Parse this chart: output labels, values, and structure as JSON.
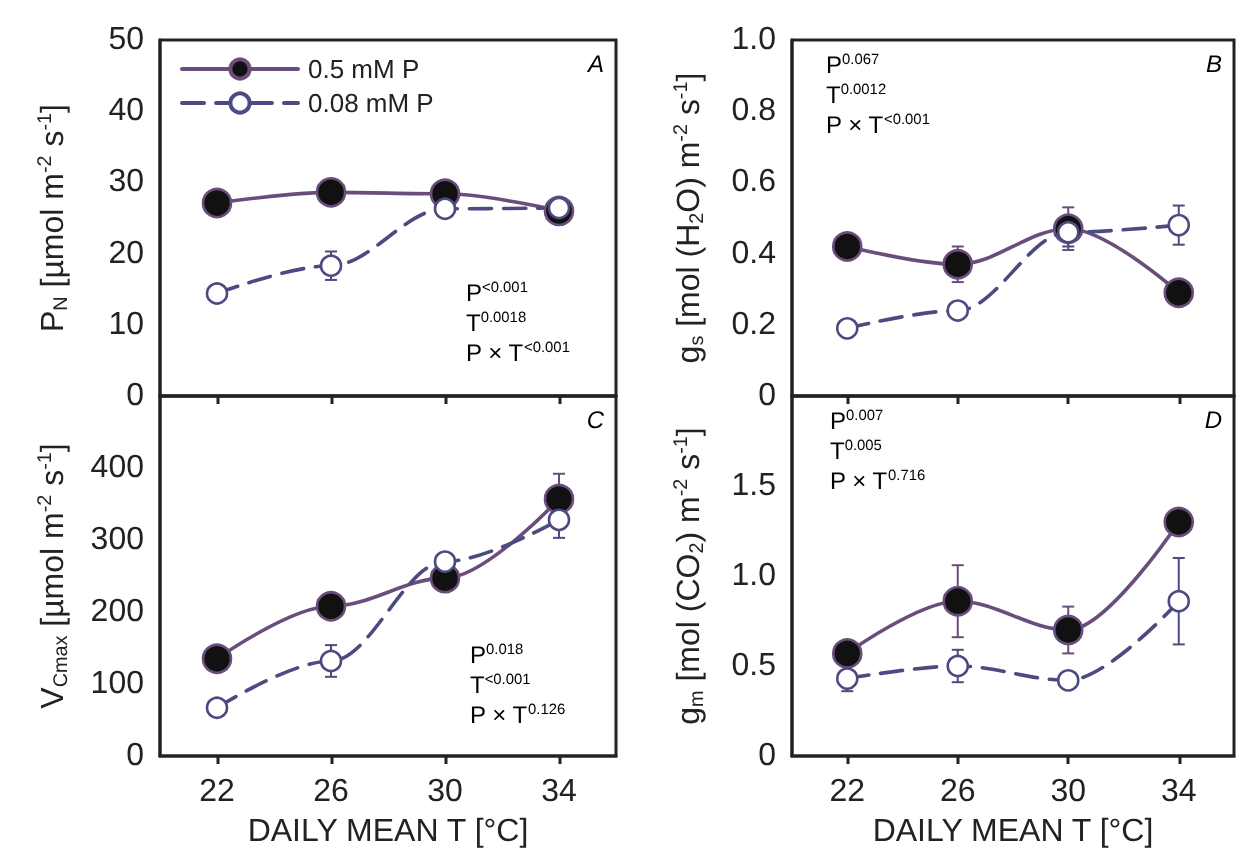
{
  "chart_data": [
    {
      "type": "line",
      "ylabel": "P$_{N}$ [µmol m$^{-2}$ s$^{-1}$]",
      "x": [
        22,
        26,
        30,
        34
      ],
      "xlim": [
        20,
        36
      ],
      "xticks": [
        22,
        26,
        30,
        34
      ],
      "ylim": [
        0,
        50
      ],
      "yticks": [
        0,
        10,
        20,
        30,
        40,
        50
      ],
      "tick_labels": "y",
      "grid": false,
      "legend": "top left",
      "marker": "circle",
      "annotations": [
        "A",
        "P$^{<0.001}$",
        "T$^{0.0018}$",
        "P × T$^{<0.001}$"
      ],
      "series": [
        {
          "name": "0.5 mM P",
          "color": "#6a4d7c",
          "line_style": "solid",
          "values": [
            27.1,
            28.6,
            28.4,
            26.0
          ],
          "errors": [
            1,
            0.5,
            1,
            1
          ]
        },
        {
          "name": "0.08 mM P",
          "color": "#4b4b82",
          "line_style": "dashed",
          "values": [
            14.4,
            18.3,
            26.3,
            26.4
          ],
          "errors": [
            0.8,
            2,
            0.8,
            1.3
          ]
        }
      ]
    },
    {
      "type": "line",
      "ylabel": "g$_{s}$ [mol (H$_{2}$O) m$^{-2}$ s$^{-1}$]",
      "x": [
        22,
        26,
        30,
        34
      ],
      "xlim": [
        20,
        36
      ],
      "xticks": [
        22,
        26,
        30,
        34
      ],
      "ylim": [
        0,
        1
      ],
      "yticks": [
        0,
        0.2,
        0.4,
        0.6,
        0.8,
        {
          "value": 1,
          "label": "1.0"
        }
      ],
      "tick_labels": "y",
      "grid": false,
      "marker": "circle",
      "annotations": [
        "B",
        "P$^{0.067}$",
        "T$^{0.0012}$",
        "P × T$^{<0.001}$"
      ],
      "series": [
        {
          "color": "#6a4d7c",
          "line_style": "solid",
          "values": [
            0.42,
            0.37,
            0.47,
            0.29
          ],
          "errors": [
            0.02,
            0.05,
            0.06,
            0.02
          ]
        },
        {
          "color": "#4b4b82",
          "line_style": "dashed",
          "values": [
            0.19,
            0.24,
            0.46,
            0.48
          ],
          "errors": [
            0.01,
            0.02,
            0.04,
            0.055
          ]
        }
      ]
    },
    {
      "type": "line",
      "ylabel": "V$_{Cmax}$ [µmol m$^{-2}$ s$^{-1}$]",
      "xlabel": "DAILY MEAN T [°C]",
      "x": [
        22,
        26,
        30,
        34
      ],
      "xlim": [
        20,
        36
      ],
      "xticks": [
        22,
        26,
        30,
        34
      ],
      "ylim": [
        0,
        500
      ],
      "yticks": [
        0,
        100,
        200,
        300,
        400
      ],
      "grid": false,
      "marker": "circle",
      "annotations": [
        "C",
        "P$^{0.018}$",
        "T$^{<0.001}$",
        "P × T$^{0.126}$"
      ],
      "series": [
        {
          "color": "#6a4d7c",
          "line_style": "solid",
          "values": [
            135,
            208,
            247,
            357
          ],
          "errors": [
            8,
            10,
            10,
            35
          ]
        },
        {
          "color": "#4b4b82",
          "line_style": "dashed",
          "values": [
            67,
            132,
            270,
            328
          ],
          "errors": [
            8,
            22,
            10,
            25
          ]
        }
      ]
    },
    {
      "type": "line",
      "ylabel": "g$_{m}$ [mol (CO$_{2}$) m$^{-2}$ s$^{-1}$]",
      "xlabel": "DAILY MEAN T [°C]",
      "x": [
        22,
        26,
        30,
        34
      ],
      "xlim": [
        20,
        36
      ],
      "xticks": [
        22,
        26,
        30,
        34
      ],
      "ylim": [
        0,
        2
      ],
      "yticks": [
        0,
        0.5,
        {
          "value": 1,
          "label": "1.0"
        },
        1.5
      ],
      "grid": false,
      "marker": "circle",
      "annotations": [
        "D",
        "P$^{0.007}$",
        "T$^{0.005}$",
        "P × T$^{0.716}$"
      ],
      "series": [
        {
          "color": "#6a4d7c",
          "line_style": "solid",
          "values": [
            0.57,
            0.86,
            0.7,
            1.3
          ],
          "errors": [
            0.06,
            0.2,
            0.13,
            0.04
          ]
        },
        {
          "color": "#4b4b82",
          "line_style": "dashed",
          "values": [
            0.43,
            0.5,
            0.42,
            0.86
          ],
          "errors": [
            0.07,
            0.09,
            0.03,
            0.24
          ]
        }
      ]
    }
  ]
}
